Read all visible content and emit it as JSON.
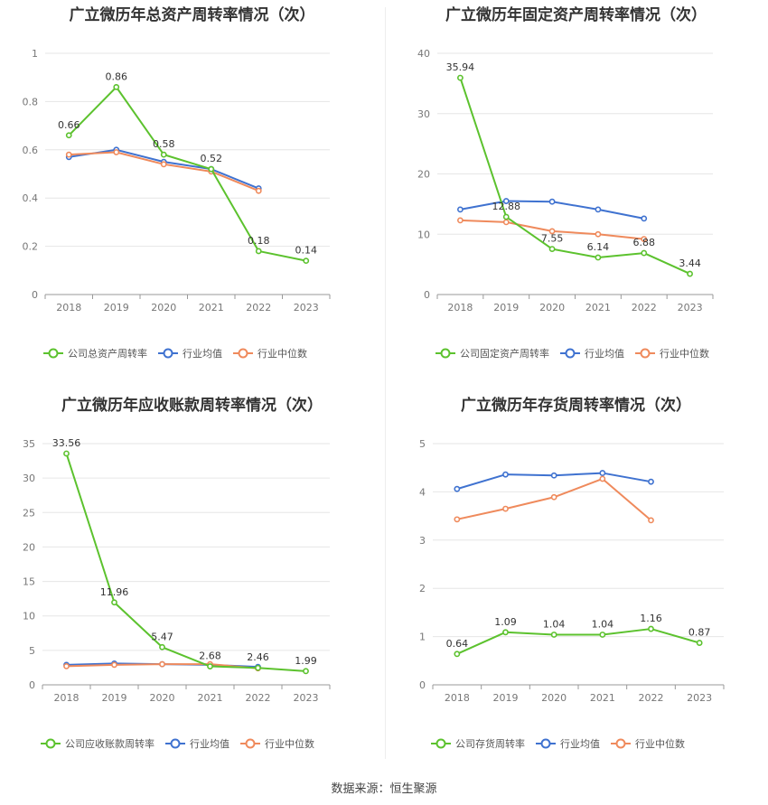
{
  "source": "数据来源：恒生聚源",
  "colors": {
    "company": "#5cc22e",
    "avg": "#3f72d0",
    "median": "#ef8a5c"
  },
  "chart_data": [
    {
      "type": "line",
      "title": "广立微历年总资产周转率情况（次）",
      "categories": [
        "2018",
        "2019",
        "2020",
        "2021",
        "2022",
        "2023"
      ],
      "ylim": [
        0,
        1
      ],
      "yticks": [
        "0",
        "0.2",
        "0.4",
        "0.6",
        "0.8",
        "1"
      ],
      "yticks_values": [
        0,
        0.2,
        0.4,
        0.6,
        0.8,
        1
      ],
      "legend_position": "bottom",
      "series": [
        {
          "name": "公司总资产周转率",
          "color": "#5cc22e",
          "values": [
            0.66,
            0.86,
            0.58,
            0.52,
            0.18,
            0.14
          ],
          "labels": [
            "0.66",
            "0.86",
            "0.58",
            "0.52",
            "0.18",
            "0.14"
          ]
        },
        {
          "name": "行业均值",
          "color": "#3f72d0",
          "values": [
            0.57,
            0.6,
            0.55,
            0.52,
            0.44,
            null
          ]
        },
        {
          "name": "行业中位数",
          "color": "#ef8a5c",
          "values": [
            0.58,
            0.59,
            0.54,
            0.51,
            0.43,
            null
          ]
        }
      ]
    },
    {
      "type": "line",
      "title": "广立微历年固定资产周转率情况（次）",
      "categories": [
        "2018",
        "2019",
        "2020",
        "2021",
        "2022",
        "2023"
      ],
      "ylim": [
        0,
        40
      ],
      "yticks": [
        "0",
        "10",
        "20",
        "30",
        "40"
      ],
      "yticks_values": [
        0,
        10,
        20,
        30,
        40
      ],
      "legend_position": "bottom",
      "series": [
        {
          "name": "公司固定资产周转率",
          "color": "#5cc22e",
          "values": [
            35.94,
            12.88,
            7.55,
            6.14,
            6.88,
            3.44
          ],
          "labels": [
            "35.94",
            "12.88",
            "7.55",
            "6.14",
            "6.88",
            "3.44"
          ]
        },
        {
          "name": "行业均值",
          "color": "#3f72d0",
          "values": [
            14.1,
            15.5,
            15.4,
            14.1,
            12.6,
            null
          ]
        },
        {
          "name": "行业中位数",
          "color": "#ef8a5c",
          "values": [
            12.3,
            12.0,
            10.5,
            10.0,
            9.2,
            null
          ]
        }
      ]
    },
    {
      "type": "line",
      "title": "广立微历年应收账款周转率情况（次）",
      "categories": [
        "2018",
        "2019",
        "2020",
        "2021",
        "2022",
        "2023"
      ],
      "ylim": [
        0,
        35
      ],
      "yticks": [
        "0",
        "5",
        "10",
        "15",
        "20",
        "25",
        "30",
        "35"
      ],
      "yticks_values": [
        0,
        5,
        10,
        15,
        20,
        25,
        30,
        35
      ],
      "legend_position": "bottom",
      "series": [
        {
          "name": "公司应收账款周转率",
          "color": "#5cc22e",
          "values": [
            33.56,
            11.96,
            5.47,
            2.68,
            2.46,
            1.99
          ],
          "labels": [
            "33.56",
            "11.96",
            "5.47",
            "2.68",
            "2.46",
            "1.99"
          ]
        },
        {
          "name": "行业均值",
          "color": "#3f72d0",
          "values": [
            2.9,
            3.1,
            3.0,
            2.9,
            2.6,
            null
          ]
        },
        {
          "name": "行业中位数",
          "color": "#ef8a5c",
          "values": [
            2.7,
            2.9,
            3.0,
            3.0,
            2.4,
            null
          ]
        }
      ]
    },
    {
      "type": "line",
      "title": "广立微历年存货周转率情况（次）",
      "categories": [
        "2018",
        "2019",
        "2020",
        "2021",
        "2022",
        "2023"
      ],
      "ylim": [
        0,
        5
      ],
      "yticks": [
        "0",
        "1",
        "2",
        "3",
        "4",
        "5"
      ],
      "yticks_values": [
        0,
        1,
        2,
        3,
        4,
        5
      ],
      "legend_position": "bottom",
      "series": [
        {
          "name": "公司存货周转率",
          "color": "#5cc22e",
          "values": [
            0.64,
            1.09,
            1.04,
            1.04,
            1.16,
            0.87
          ],
          "labels": [
            "0.64",
            "1.09",
            "1.04",
            "1.04",
            "1.16",
            "0.87"
          ]
        },
        {
          "name": "行业均值",
          "color": "#3f72d0",
          "values": [
            4.06,
            4.36,
            4.34,
            4.39,
            4.21,
            null
          ]
        },
        {
          "name": "行业中位数",
          "color": "#ef8a5c",
          "values": [
            3.43,
            3.65,
            3.89,
            4.27,
            3.41,
            null
          ]
        }
      ]
    }
  ]
}
